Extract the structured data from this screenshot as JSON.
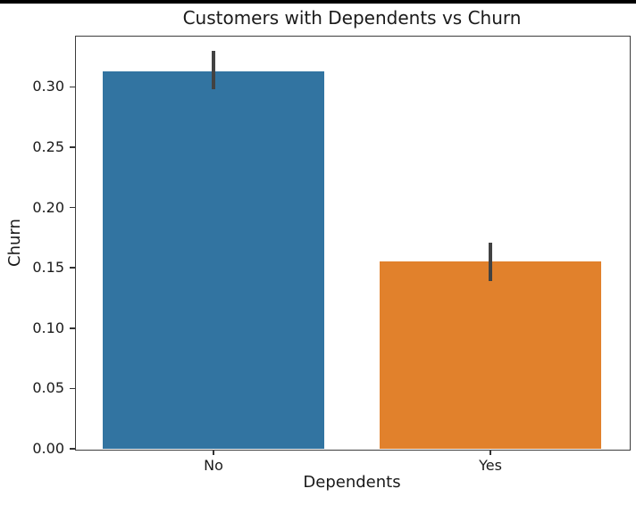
{
  "chrome": {
    "top_bar_color": "#000000"
  },
  "chart_data": {
    "type": "bar",
    "title": "Customers with Dependents vs Churn",
    "xlabel": "Dependents",
    "ylabel": "Churn",
    "categories": [
      "No",
      "Yes"
    ],
    "values": [
      0.313,
      0.155
    ],
    "errors": [
      {
        "low": 0.298,
        "high": 0.33
      },
      {
        "low": 0.139,
        "high": 0.171
      }
    ],
    "bar_colors": [
      "#3274A1",
      "#E1812C"
    ],
    "error_color": "#424242",
    "yticks": [
      0.0,
      0.05,
      0.1,
      0.15,
      0.2,
      0.25,
      0.3
    ],
    "ytick_labels": [
      "0.00",
      "0.05",
      "0.10",
      "0.15",
      "0.20",
      "0.25",
      "0.30"
    ],
    "ylim": [
      0,
      0.3425
    ],
    "xlim": [
      -0.5,
      1.5
    ],
    "grid": false,
    "legend": null
  }
}
